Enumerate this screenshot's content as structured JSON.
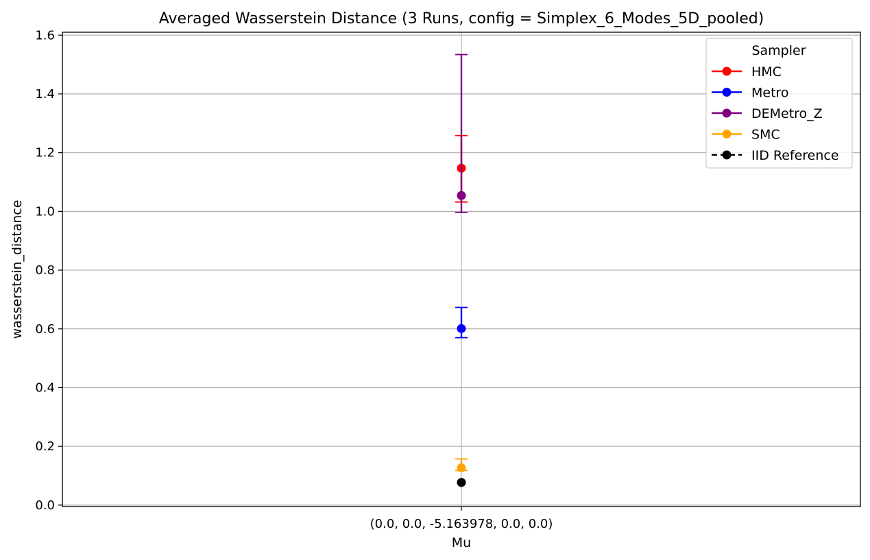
{
  "chart_data": {
    "type": "scatter",
    "title": "Averaged Wasserstein Distance (3 Runs, config = Simplex_6_Modes_5D_pooled)",
    "xlabel": "Mu",
    "ylabel": "wasserstein_distance",
    "categories": [
      "(0.0, 0.0, -5.163978, 0.0, 0.0)"
    ],
    "ylim": [
      -0.005,
      1.61
    ],
    "yticks": [
      0.0,
      0.2,
      0.4,
      0.6,
      0.8,
      1.0,
      1.2,
      1.4,
      1.6
    ],
    "ytick_labels": [
      "0.0",
      "0.2",
      "0.4",
      "0.6",
      "0.8",
      "1.0",
      "1.2",
      "1.4",
      "1.6"
    ],
    "grid": true,
    "legend": {
      "title": "Sampler",
      "placement": "top-right"
    },
    "series": [
      {
        "name": "HMC",
        "color": "#ff0000",
        "marker": "circle",
        "line": "solid",
        "values": [
          1.147
        ],
        "err_low": [
          1.032
        ],
        "err_high": [
          1.258
        ]
      },
      {
        "name": "Metro",
        "color": "#0000ff",
        "marker": "circle",
        "line": "solid",
        "values": [
          0.601
        ],
        "err_low": [
          0.57
        ],
        "err_high": [
          0.673
        ]
      },
      {
        "name": "DEMetro_Z",
        "color": "#800080",
        "marker": "circle",
        "line": "solid",
        "values": [
          1.054
        ],
        "err_low": [
          0.996
        ],
        "err_high": [
          1.534
        ]
      },
      {
        "name": "SMC",
        "color": "#ffa500",
        "marker": "circle",
        "line": "solid",
        "values": [
          0.127
        ],
        "err_low": [
          0.118
        ],
        "err_high": [
          0.157
        ]
      },
      {
        "name": "IID Reference",
        "color": "#000000",
        "marker": "circle",
        "line": "dashed",
        "values": [
          0.077
        ],
        "err_low": null,
        "err_high": null
      }
    ]
  }
}
